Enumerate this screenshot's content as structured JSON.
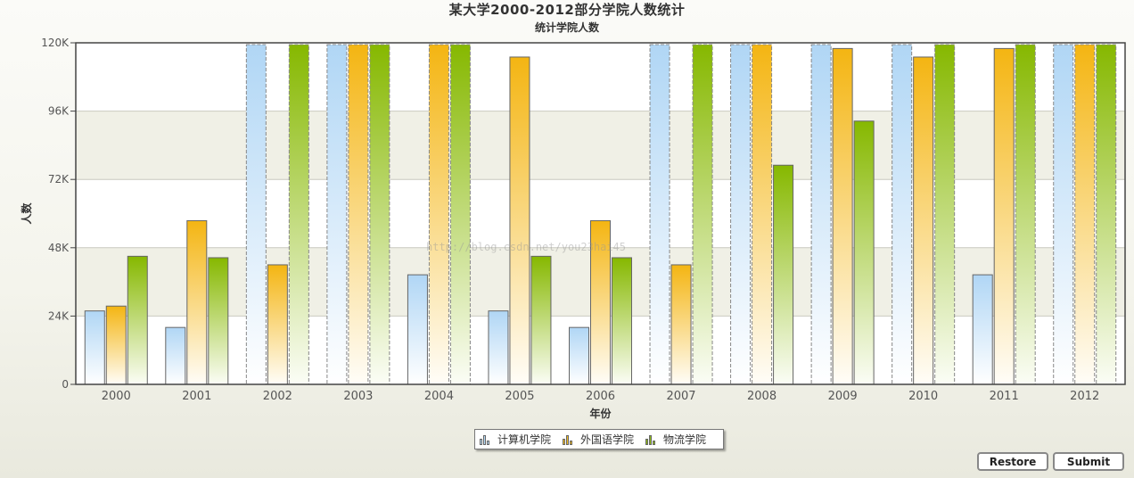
{
  "chart_data": {
    "type": "bar",
    "title": "某大学2000-2012部分学院人数统计",
    "subtitle": "统计学院人数",
    "xlabel": "年份",
    "ylabel": "人数",
    "ylim": [
      0,
      120000
    ],
    "yticks": [
      "0",
      "24K",
      "48K",
      "72K",
      "96K",
      "120K"
    ],
    "ytick_values": [
      0,
      24000,
      48000,
      72000,
      96000,
      120000
    ],
    "grid": true,
    "legend_position": "bottom-center",
    "categories": [
      "2000",
      "2001",
      "2002",
      "2003",
      "2004",
      "2005",
      "2006",
      "2007",
      "2008",
      "2009",
      "2010",
      "2011",
      "2012"
    ],
    "series": [
      {
        "name": "计算机学院",
        "color": "#b7dcf7",
        "values": [
          25800,
          20000,
          130000,
          130000,
          38500,
          25800,
          20000,
          130000,
          130000,
          130000,
          130000,
          38500,
          130000
        ]
      },
      {
        "name": "外国语学院",
        "color": "#f5bb1c",
        "values": [
          27500,
          57500,
          42000,
          130000,
          130000,
          115000,
          57500,
          42000,
          130000,
          118000,
          115000,
          118000,
          130000
        ]
      },
      {
        "name": "物流学院",
        "color": "#8cbb10",
        "values": [
          45000,
          44500,
          130000,
          130000,
          130000,
          45000,
          44500,
          130000,
          77000,
          92500,
          130000,
          130000,
          130000
        ]
      }
    ]
  },
  "watermark": "http://blog.csdn.net/you23hai45",
  "buttons": {
    "restore": "Restore",
    "submit": "Submit"
  }
}
